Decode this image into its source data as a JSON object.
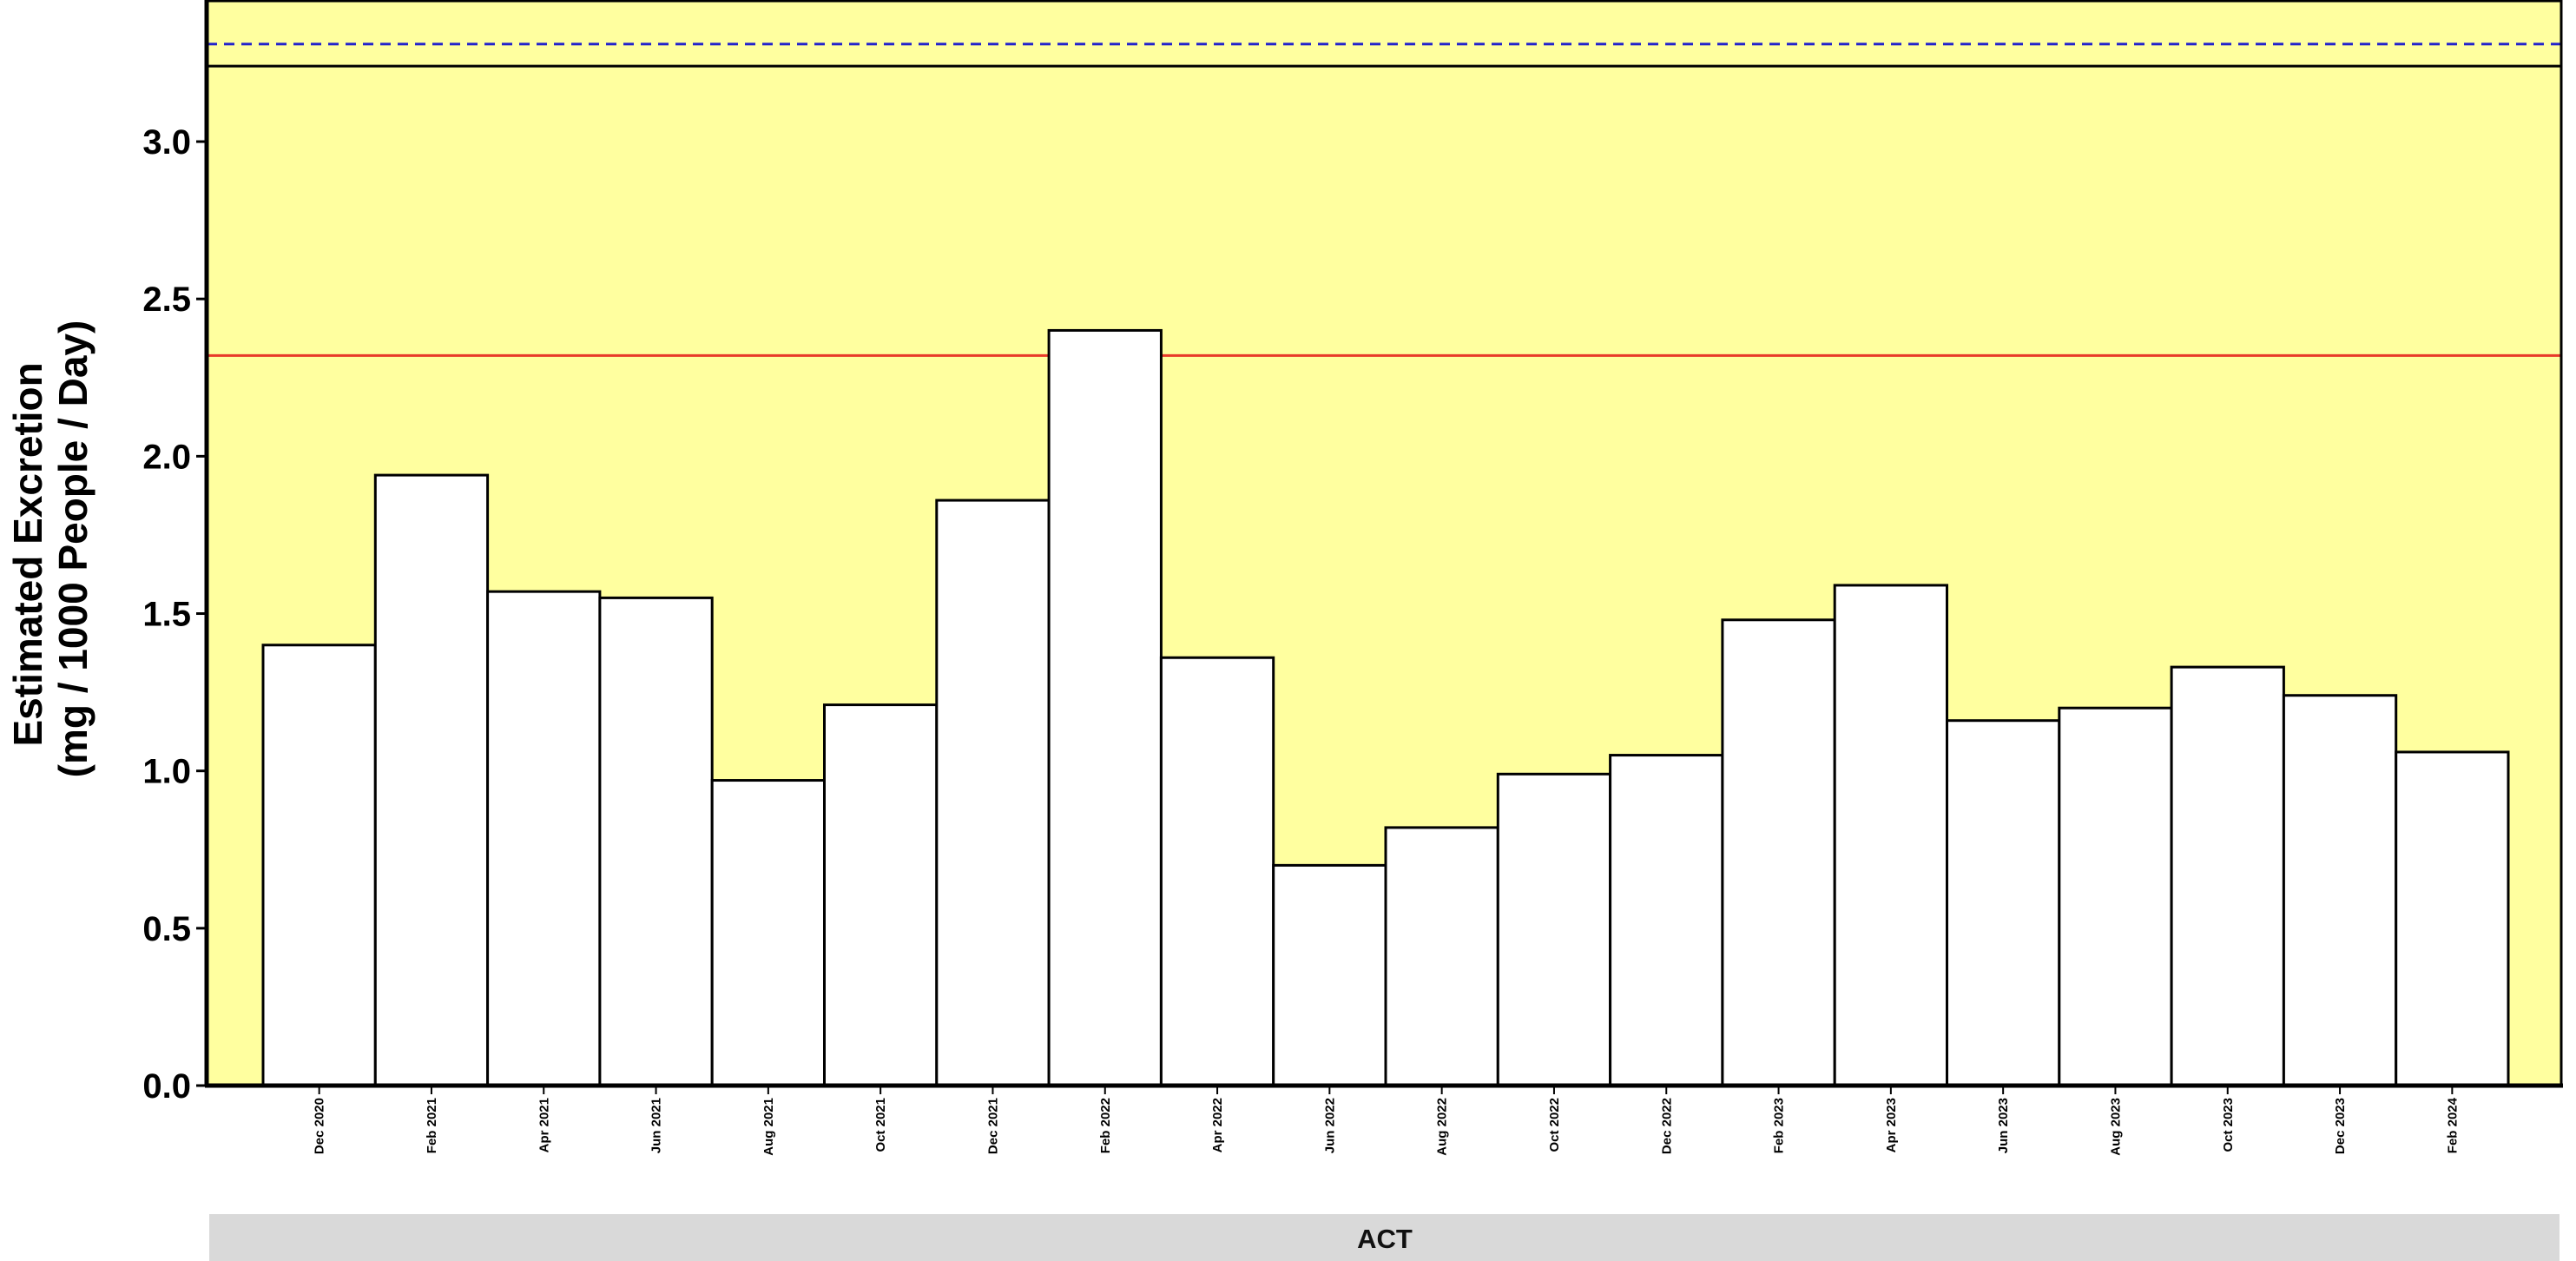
{
  "chart_data": {
    "type": "bar",
    "title": "",
    "xlabel": "",
    "ylabel_lines": [
      "Estimated Excretion",
      "(mg / 1000 People / Day)"
    ],
    "facet": "ACT",
    "categories": [
      "Dec 2020",
      "Feb 2021",
      "Apr 2021",
      "Jun 2021",
      "Aug 2021",
      "Oct 2021",
      "Dec 2021",
      "Feb 2022",
      "Apr 2022",
      "Jun 2022",
      "Aug 2022",
      "Oct 2022",
      "Dec 2022",
      "Feb 2023",
      "Apr 2023",
      "Jun 2023",
      "Aug 2023",
      "Oct 2023",
      "Dec 2023",
      "Feb 2024"
    ],
    "values": [
      1.4,
      1.94,
      1.57,
      1.55,
      0.97,
      1.21,
      1.86,
      2.4,
      1.36,
      0.7,
      0.82,
      0.99,
      1.05,
      1.48,
      1.59,
      1.16,
      1.2,
      1.33,
      1.24,
      1.06
    ],
    "ylim": [
      0,
      3.45
    ],
    "yticks": [
      0.0,
      0.5,
      1.0,
      1.5,
      2.0,
      2.5,
      3.0
    ],
    "ytick_labels": [
      "0.0",
      "0.5",
      "1.0",
      "1.5",
      "2.0",
      "2.5",
      "3.0"
    ],
    "reference_lines": [
      {
        "value": 3.31,
        "color": "#2222cc",
        "style": "dashed"
      },
      {
        "value": 3.24,
        "color": "#000000",
        "style": "solid"
      },
      {
        "value": 2.32,
        "color": "#e83a2a",
        "style": "solid"
      }
    ],
    "grid": false,
    "colors": {
      "panel_background": "#ffff9f",
      "bar_fill": "#ffffff",
      "bar_stroke": "#000000",
      "facet_strip": "#d9d9d9"
    }
  }
}
